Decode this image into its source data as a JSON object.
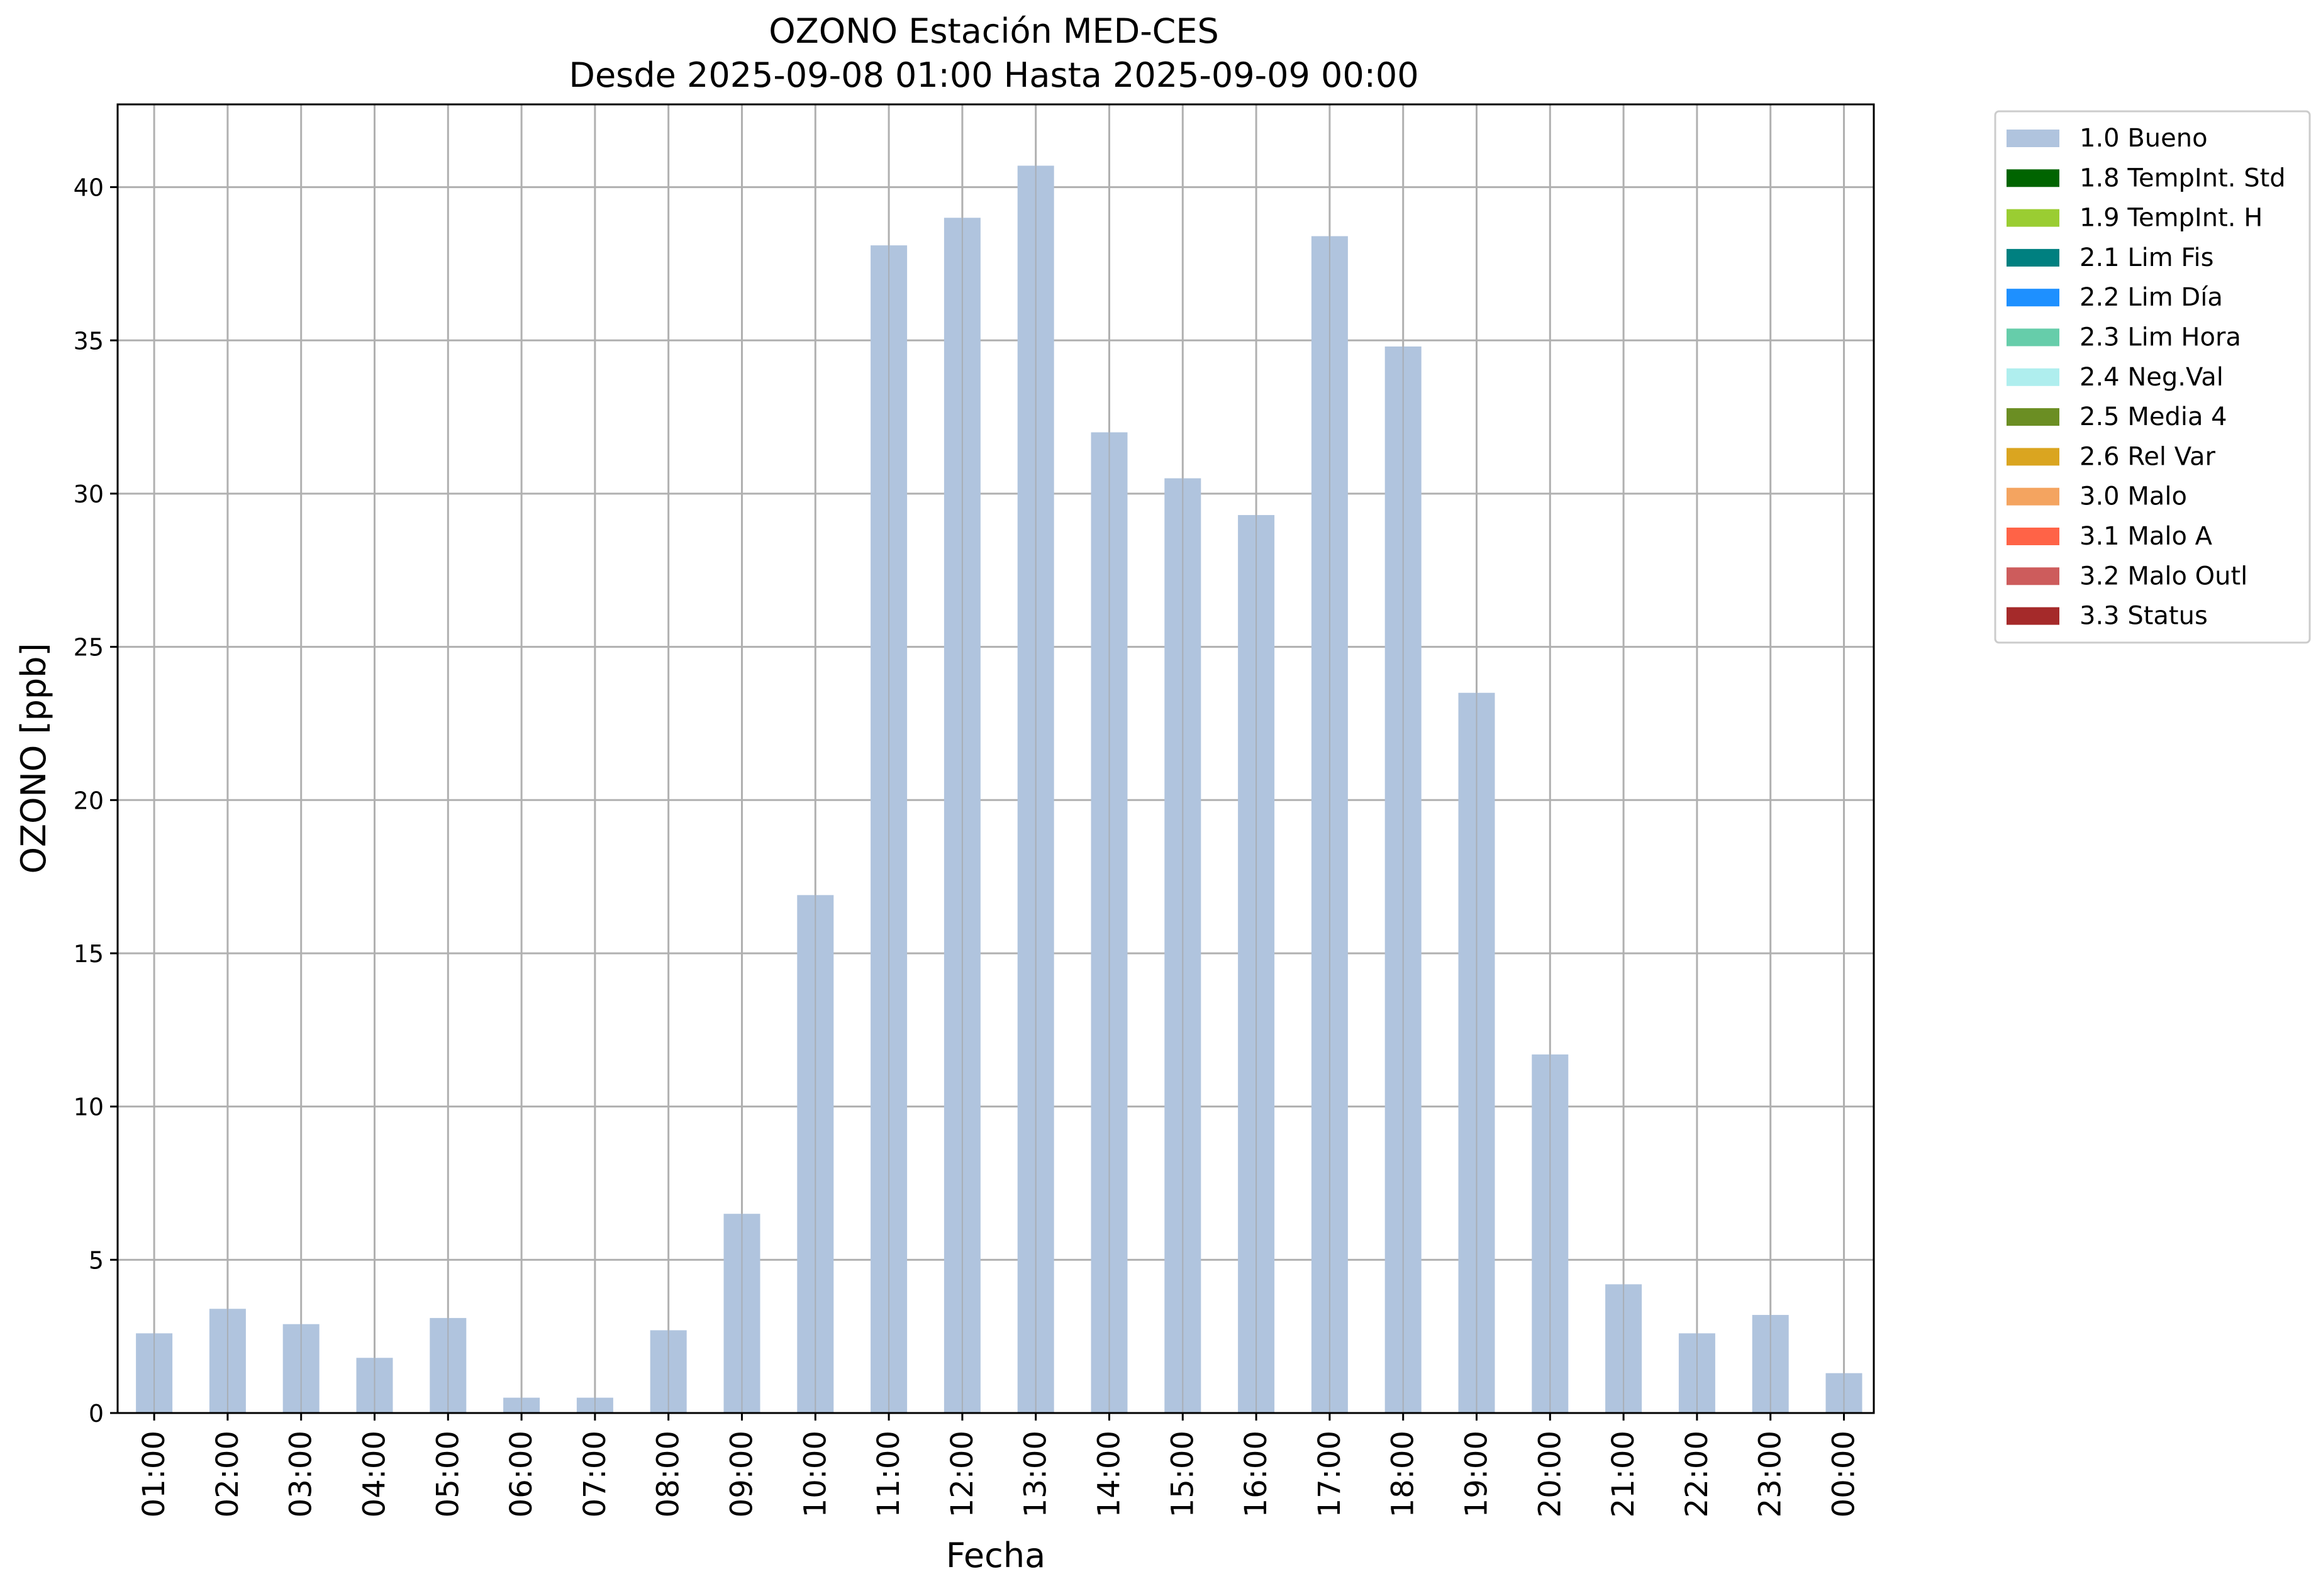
{
  "chart_data": {
    "type": "bar",
    "title": "OZONO Estación MED-CES",
    "subtitle": "Desde 2025-09-08 01:00 Hasta 2025-09-09 00:00",
    "xlabel": "Fecha",
    "ylabel": "OZONO [ppb]",
    "ylim": [
      0,
      42.7
    ],
    "yticks": [
      0,
      5,
      10,
      15,
      20,
      25,
      30,
      35,
      40
    ],
    "grid": true,
    "legend_position": "outside-top-right",
    "categories": [
      "01:00",
      "02:00",
      "03:00",
      "04:00",
      "05:00",
      "06:00",
      "07:00",
      "08:00",
      "09:00",
      "10:00",
      "11:00",
      "12:00",
      "13:00",
      "14:00",
      "15:00",
      "16:00",
      "17:00",
      "18:00",
      "19:00",
      "20:00",
      "21:00",
      "22:00",
      "23:00",
      "00:00"
    ],
    "series": [
      {
        "name": "1.0 Bueno",
        "color": "#b0c4de",
        "values": [
          2.6,
          3.4,
          2.9,
          1.8,
          3.1,
          0.5,
          0.5,
          2.7,
          6.5,
          16.9,
          38.1,
          39.0,
          40.7,
          32.0,
          30.5,
          29.3,
          38.4,
          34.8,
          23.5,
          11.7,
          4.2,
          2.6,
          3.2,
          1.3
        ]
      }
    ],
    "legend": [
      {
        "label": "1.0 Bueno",
        "color": "#b0c4de"
      },
      {
        "label": "1.8 TempInt. Std",
        "color": "#006400"
      },
      {
        "label": "1.9 TempInt. H",
        "color": "#9acd32"
      },
      {
        "label": "2.1 Lim Fis",
        "color": "#008080"
      },
      {
        "label": "2.2 Lim Día",
        "color": "#1e90ff"
      },
      {
        "label": "2.3 Lim Hora",
        "color": "#66cdaa"
      },
      {
        "label": "2.4 Neg.Val",
        "color": "#afeeee"
      },
      {
        "label": "2.5 Media 4",
        "color": "#6b8e23"
      },
      {
        "label": "2.6 Rel Var",
        "color": "#daa520"
      },
      {
        "label": "3.0 Malo",
        "color": "#f4a460"
      },
      {
        "label": "3.1 Malo A",
        "color": "#ff6347"
      },
      {
        "label": "3.2 Malo Outl",
        "color": "#cd5c5c"
      },
      {
        "label": "3.3 Status",
        "color": "#a52a2a"
      }
    ]
  }
}
